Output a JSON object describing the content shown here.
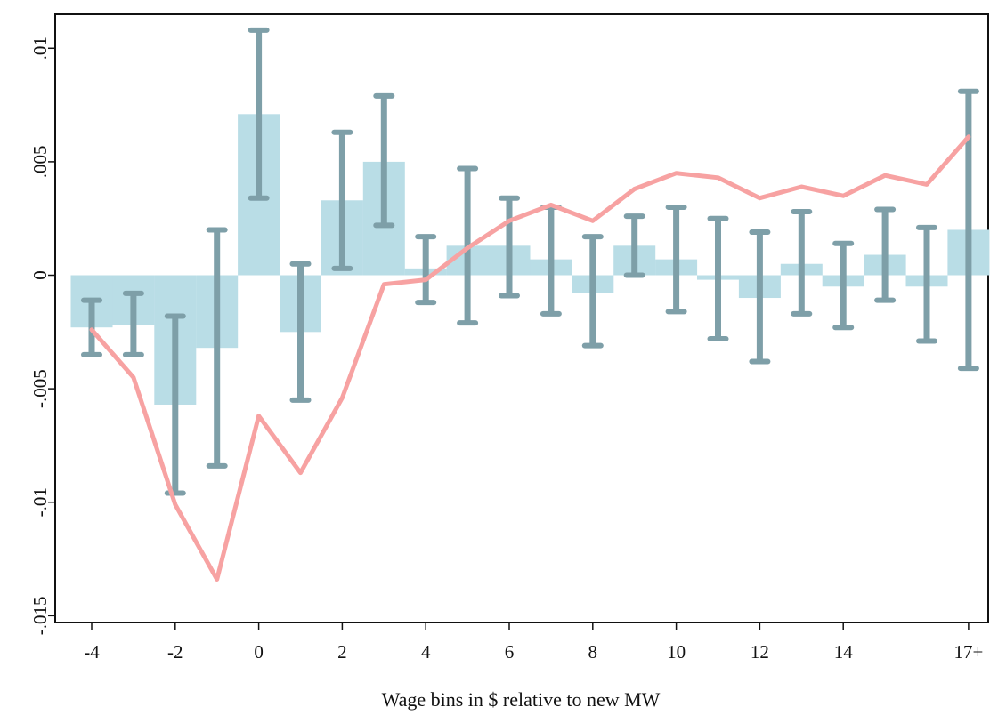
{
  "chart_data": {
    "type": "bar",
    "title": "",
    "xlabel": "Wage bins in $ relative to new MW",
    "ylabel": "",
    "x": [
      -4,
      -3,
      -2,
      -1,
      0,
      1,
      2,
      3,
      4,
      5,
      6,
      7,
      8,
      9,
      10,
      11,
      12,
      13,
      14,
      15,
      16,
      17
    ],
    "xticks": [
      -4,
      -2,
      0,
      2,
      4,
      6,
      8,
      10,
      12,
      14,
      17
    ],
    "xtick_labels": [
      "-4",
      "-2",
      "0",
      "2",
      "4",
      "6",
      "8",
      "10",
      "12",
      "14",
      "17+"
    ],
    "yticks": [
      0.01,
      0.005,
      0,
      -0.005,
      -0.01,
      -0.015
    ],
    "ytick_labels": [
      ".01",
      ".005",
      "0",
      "-.005",
      "-.01",
      "-.015"
    ],
    "xlim": [
      -4.5,
      17.5
    ],
    "ylim": [
      -0.0153,
      0.0115
    ],
    "grid": false,
    "series": [
      {
        "kind": "bar",
        "color": "#b9dde6",
        "values": [
          -0.0023,
          -0.0022,
          -0.0057,
          -0.0032,
          0.0071,
          -0.0025,
          0.0033,
          0.005,
          0.0003,
          0.0013,
          0.0013,
          0.0007,
          -0.0008,
          0.0013,
          0.0007,
          -0.0002,
          -0.001,
          0.0005,
          -0.0005,
          0.0009,
          -0.0005,
          0.002
        ]
      },
      {
        "kind": "errorbar",
        "color": "#7e9fa8",
        "lower": [
          -0.0035,
          -0.0035,
          -0.0096,
          -0.0084,
          0.0034,
          -0.0055,
          0.0003,
          0.0022,
          -0.0012,
          -0.0021,
          -0.0009,
          -0.0017,
          -0.0031,
          0.0,
          -0.0016,
          -0.0028,
          -0.0038,
          -0.0017,
          -0.0023,
          -0.0011,
          -0.0029,
          -0.0041
        ],
        "upper": [
          -0.0011,
          -0.0008,
          -0.0018,
          0.002,
          0.0108,
          0.0005,
          0.0063,
          0.0079,
          0.0017,
          0.0047,
          0.0034,
          0.003,
          0.0017,
          0.0026,
          0.003,
          0.0025,
          0.0019,
          0.0028,
          0.0014,
          0.0029,
          0.0021,
          0.0081
        ]
      },
      {
        "kind": "line",
        "color": "#f7a2a2",
        "values": [
          -0.0024,
          -0.0045,
          -0.0101,
          -0.0134,
          -0.0062,
          -0.0087,
          -0.0054,
          -0.0004,
          -0.0002,
          0.0012,
          0.0024,
          0.0031,
          0.0024,
          0.0038,
          0.0045,
          0.0043,
          0.0034,
          0.0039,
          0.0035,
          0.0044,
          0.004,
          0.0061
        ]
      }
    ]
  }
}
